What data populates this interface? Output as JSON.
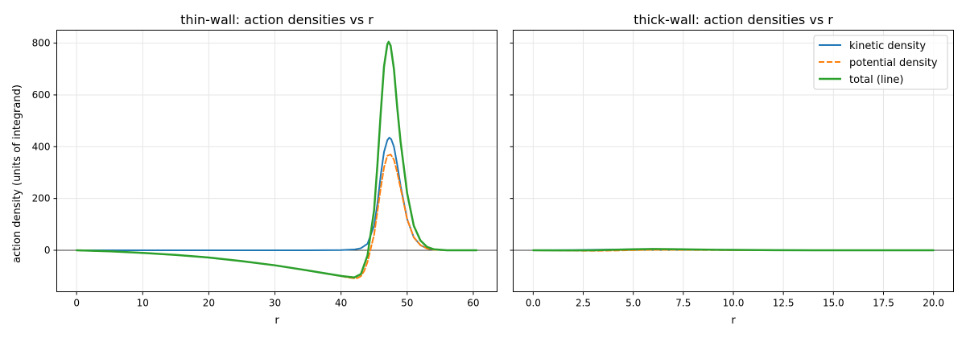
{
  "chart_data": [
    {
      "type": "line",
      "title": "thin-wall: action densities vs r",
      "xlabel": "r",
      "ylabel": "action density  (units of integrand)",
      "xlim": [
        -3,
        63.6
      ],
      "ylim": [
        -160,
        850
      ],
      "xticks": [
        0,
        10,
        20,
        30,
        40,
        50,
        60
      ],
      "yticks": [
        0,
        200,
        400,
        600,
        800
      ],
      "grid": true,
      "hline": 0,
      "series": [
        {
          "name": "kinetic density",
          "color": "#1f77b4",
          "style": "solid",
          "x": [
            0,
            5,
            10,
            15,
            20,
            25,
            30,
            35,
            40,
            42,
            43,
            44,
            45,
            45.5,
            46,
            46.5,
            47,
            47.3,
            47.6,
            48,
            48.5,
            49,
            50,
            51,
            52,
            53,
            54,
            56,
            60.5
          ],
          "y": [
            0,
            0,
            0,
            0,
            0,
            0,
            0,
            0,
            1,
            3,
            8,
            25,
            95,
            180,
            290,
            380,
            425,
            435,
            428,
            400,
            330,
            250,
            120,
            50,
            20,
            7,
            2,
            0,
            0
          ]
        },
        {
          "name": "potential density",
          "color": "#ff7f0e",
          "style": "dashed",
          "x": [
            0,
            5,
            10,
            15,
            20,
            25,
            30,
            35,
            40,
            41,
            42,
            42.5,
            43,
            43.5,
            44,
            45,
            45.5,
            46,
            46.5,
            47,
            47.5,
            48,
            48.5,
            49,
            50,
            51,
            52,
            53,
            54,
            56,
            60.5
          ],
          "y": [
            0,
            -4,
            -10,
            -18,
            -28,
            -42,
            -58,
            -78,
            -100,
            -105,
            -108,
            -107,
            -100,
            -80,
            -45,
            60,
            150,
            240,
            320,
            365,
            370,
            350,
            300,
            240,
            120,
            50,
            20,
            7,
            2,
            0,
            0
          ]
        },
        {
          "name": "total (line)",
          "color": "#2ca02c",
          "style": "solid",
          "x": [
            0,
            5,
            10,
            15,
            20,
            25,
            30,
            35,
            40,
            41,
            42,
            43,
            44,
            45,
            45.5,
            46,
            46.5,
            47,
            47.2,
            47.5,
            48,
            48.5,
            49,
            50,
            51,
            52,
            53,
            54,
            56,
            60.5
          ],
          "y": [
            0,
            -4,
            -10,
            -18,
            -28,
            -42,
            -58,
            -78,
            -99,
            -102,
            -105,
            -92,
            -20,
            155,
            330,
            530,
            710,
            795,
            805,
            790,
            700,
            550,
            420,
            220,
            95,
            38,
            13,
            4,
            0,
            0
          ]
        }
      ]
    },
    {
      "type": "line",
      "title": "thick-wall: action densities vs r",
      "xlabel": "r",
      "ylabel": "",
      "xlim": [
        -1,
        21
      ],
      "ylim": [
        -160,
        850
      ],
      "xticks": [
        0.0,
        2.5,
        5.0,
        7.5,
        10.0,
        12.5,
        15.0,
        17.5,
        20.0
      ],
      "xticklabels": [
        "0.0",
        "2.5",
        "5.0",
        "7.5",
        "10.0",
        "12.5",
        "15.0",
        "17.5",
        "20.0"
      ],
      "grid": true,
      "hline": 0,
      "legend": {
        "position": "top-right",
        "entries": [
          "kinetic density",
          "potential density",
          "total (line)"
        ]
      },
      "series": [
        {
          "name": "kinetic density",
          "color": "#1f77b4",
          "style": "solid",
          "x": [
            0,
            1,
            2,
            3,
            4,
            5,
            6,
            7,
            8,
            10,
            12,
            14,
            16,
            18,
            20
          ],
          "y": [
            0,
            0.3,
            1,
            2,
            3,
            3.5,
            3.5,
            3,
            2,
            1,
            0.4,
            0.1,
            0,
            0,
            0
          ]
        },
        {
          "name": "potential density",
          "color": "#ff7f0e",
          "style": "dashed",
          "x": [
            0,
            1,
            2,
            3,
            4,
            5,
            6,
            7,
            8,
            10,
            12,
            14,
            16,
            18,
            20
          ],
          "y": [
            0,
            -0.5,
            -1.5,
            -2,
            -1,
            0.5,
            1.5,
            1.5,
            1,
            0.5,
            0.2,
            0,
            0,
            0,
            0
          ]
        },
        {
          "name": "total (line)",
          "color": "#2ca02c",
          "style": "solid",
          "x": [
            0,
            1,
            2,
            3,
            4,
            5,
            6,
            7,
            8,
            10,
            12,
            14,
            16,
            18,
            20
          ],
          "y": [
            0,
            -0.2,
            -0.5,
            0,
            2,
            4,
            5,
            4.5,
            3,
            1.5,
            0.6,
            0.1,
            0,
            0,
            0
          ]
        }
      ]
    }
  ]
}
